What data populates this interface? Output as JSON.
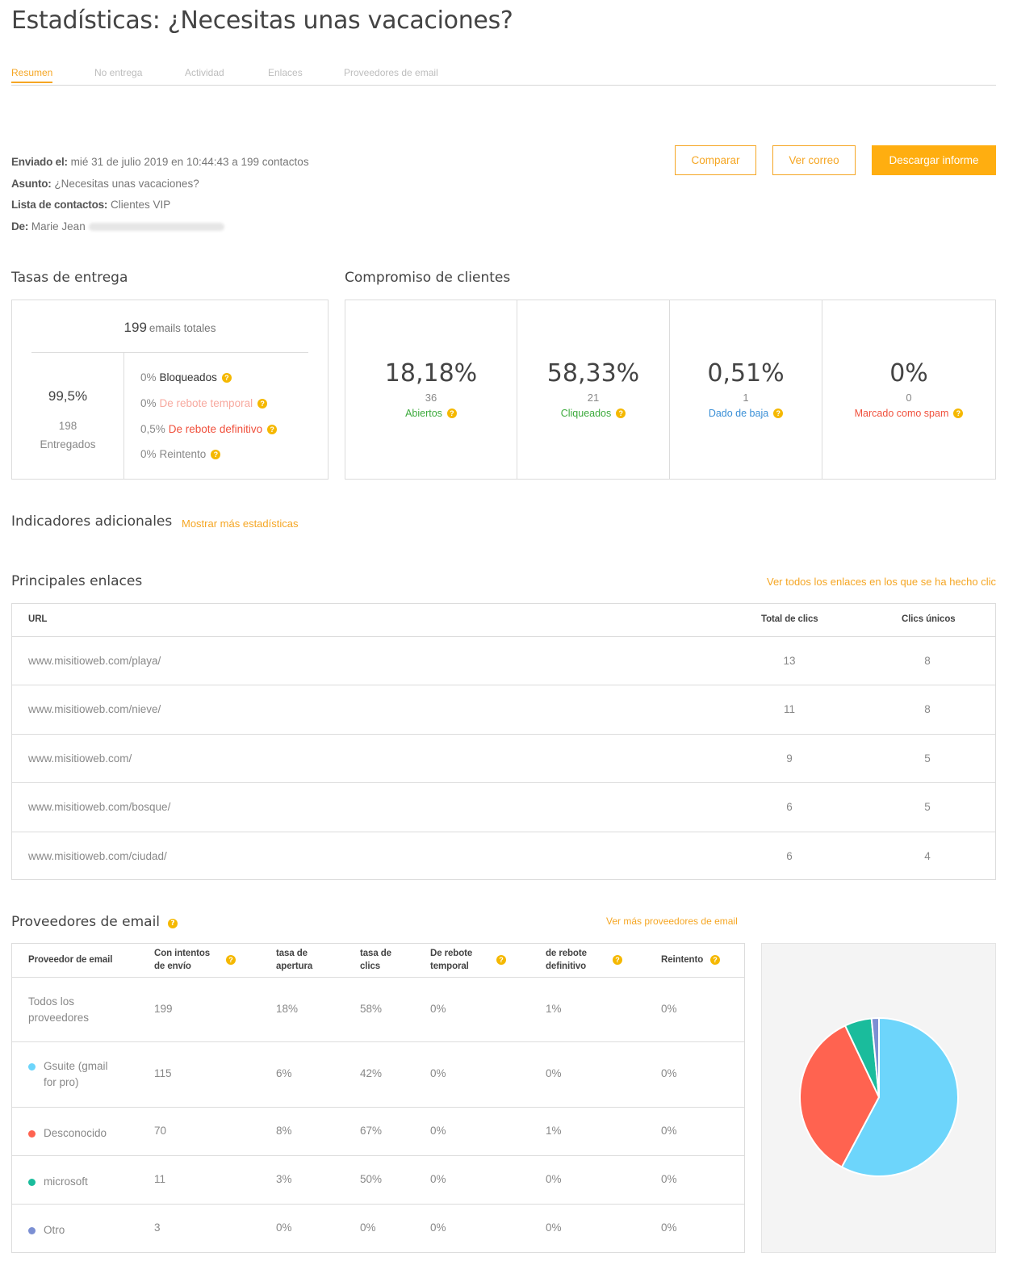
{
  "page_title": "Estadísticas: ¿Necesitas unas vacaciones?",
  "tabs": [
    {
      "label": "Resumen",
      "active": true
    },
    {
      "label": "No entrega"
    },
    {
      "label": "Actividad"
    },
    {
      "label": "Enlaces"
    },
    {
      "label": "Proveedores de email"
    }
  ],
  "meta": {
    "sent_label": "Enviado el:",
    "sent_value": "mié 31 de julio 2019 en 10:44:43 a 199 contactos",
    "subject_label": "Asunto:",
    "subject_value": "¿Necesitas unas vacaciones?",
    "list_label": "Lista de contactos:",
    "list_value": "Clientes VIP",
    "from_label": "De:",
    "from_value": "Marie Jean"
  },
  "actions": {
    "compare": "Comparar",
    "view_email": "Ver correo",
    "download": "Descargar informe"
  },
  "delivery": {
    "title": "Tasas de entrega",
    "total_num": "199",
    "total_label": "emails totales",
    "delivered_pct": "99,5%",
    "delivered_count": "198",
    "delivered_label": "Entregados",
    "rows": [
      {
        "pct": "0%",
        "label": "Bloqueados",
        "color": "#333333"
      },
      {
        "pct": "0%",
        "label": "De rebote temporal",
        "color": "#f7a99f"
      },
      {
        "pct": "0,5%",
        "label": "De rebote definitivo",
        "color": "#f0503c"
      },
      {
        "pct": "0%",
        "label": "Reintento",
        "color": "#888888"
      }
    ]
  },
  "engagement": {
    "title": "Compromiso de clientes",
    "cells": [
      {
        "pct": "18,18%",
        "count": "36",
        "label": "Abiertos",
        "color": "#3caa3c"
      },
      {
        "pct": "58,33%",
        "count": "21",
        "label": "Cliqueados",
        "color": "#3caa3c"
      },
      {
        "pct": "0,51%",
        "count": "1",
        "label": "Dado de baja",
        "color": "#3a8fd6"
      },
      {
        "pct": "0%",
        "count": "0",
        "label": "Marcado como spam",
        "color": "#f0503c"
      }
    ]
  },
  "extra": {
    "title": "Indicadores adicionales",
    "link": "Mostrar más estadísticas"
  },
  "links": {
    "title": "Principales enlaces",
    "view_all": "Ver todos los enlaces en los que se ha hecho clic",
    "headers": {
      "url": "URL",
      "total": "Total de clics",
      "unique": "Clics únicos"
    },
    "rows": [
      {
        "url": "www.misitioweb.com/playa/",
        "total": "13",
        "unique": "8"
      },
      {
        "url": "www.misitioweb.com/nieve/",
        "total": "11",
        "unique": "8"
      },
      {
        "url": "www.misitioweb.com/",
        "total": "9",
        "unique": "5"
      },
      {
        "url": "www.misitioweb.com/bosque/",
        "total": "6",
        "unique": "5"
      },
      {
        "url": "www.misitioweb.com/ciudad/",
        "total": "6",
        "unique": "4"
      }
    ]
  },
  "providers": {
    "title": "Proveedores de email",
    "view_more": "Ver más proveedores de email",
    "headers": {
      "provider": "Proveedor de email",
      "attempts_1": "Con intentos",
      "attempts_2": "de envío",
      "open_1": "tasa de",
      "open_2": "apertura",
      "click_1": "tasa de",
      "click_2": "clics",
      "soft_1": "De rebote",
      "soft_2": "temporal",
      "hard_1": "de rebote",
      "hard_2": "definitivo",
      "retry": "Reintento"
    },
    "rows": [
      {
        "name_1": "Todos los",
        "name_2": "proveedores",
        "color": "",
        "attempts": "199",
        "open": "18%",
        "click": "58%",
        "soft": "0%",
        "hard": "1%",
        "retry": "0%"
      },
      {
        "name_1": "Gsuite (gmail",
        "name_2": "for pro)",
        "color": "#6dd5fb",
        "attempts": "115",
        "open": "6%",
        "click": "42%",
        "soft": "0%",
        "hard": "0%",
        "retry": "0%"
      },
      {
        "name_1": "Desconocido",
        "name_2": "",
        "color": "#ff6350",
        "attempts": "70",
        "open": "8%",
        "click": "67%",
        "soft": "0%",
        "hard": "1%",
        "retry": "0%"
      },
      {
        "name_1": "microsoft",
        "name_2": "",
        "color": "#1abc9c",
        "attempts": "11",
        "open": "3%",
        "click": "50%",
        "soft": "0%",
        "hard": "0%",
        "retry": "0%"
      },
      {
        "name_1": "Otro",
        "name_2": "",
        "color": "#7b8fd3",
        "attempts": "3",
        "open": "0%",
        "click": "0%",
        "soft": "0%",
        "hard": "0%",
        "retry": "0%"
      }
    ]
  },
  "chart_data": {
    "type": "pie",
    "categories": [
      "Gsuite (gmail for pro)",
      "Desconocido",
      "microsoft",
      "Otro"
    ],
    "values": [
      115,
      70,
      11,
      3
    ],
    "colors": [
      "#6dd5fb",
      "#ff6350",
      "#1abc9c",
      "#7b8fd3"
    ]
  }
}
